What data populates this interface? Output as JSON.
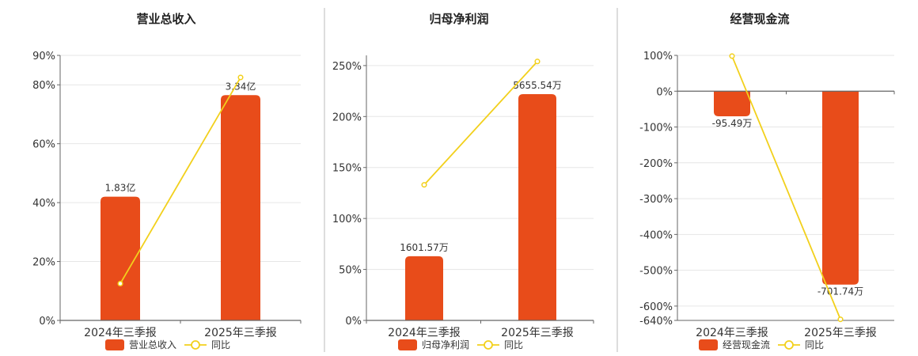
{
  "bar_color": "#E84C1A",
  "line_color": "#F2D01C",
  "axis_color": "#666666",
  "grid_color": "#E6E6E6",
  "divider_color": "#BBBBBB",
  "chart_data": [
    {
      "type": "bar",
      "title": "营业总收入",
      "categories": [
        "2024年三季报",
        "2025年三季报"
      ],
      "series": [
        {
          "name": "营业总收入",
          "kind": "bar",
          "values": [
            42,
            76.5
          ],
          "labels": [
            "1.83亿",
            "3.34亿"
          ]
        },
        {
          "name": "同比",
          "kind": "line",
          "values": [
            12.5,
            82.5
          ]
        }
      ],
      "ylim": [
        0,
        90
      ],
      "yticks": [
        0,
        20,
        40,
        60,
        80,
        90
      ],
      "ytick_labels": [
        "0%",
        "20%",
        "40%",
        "60%",
        "80%",
        "90%"
      ],
      "grid": true,
      "legend": "bottom"
    },
    {
      "type": "bar",
      "title": "归母净利润",
      "categories": [
        "2024年三季报",
        "2025年三季报"
      ],
      "series": [
        {
          "name": "归母净利润",
          "kind": "bar",
          "values": [
            63,
            222
          ],
          "labels": [
            "1601.57万",
            "5655.54万"
          ]
        },
        {
          "name": "同比",
          "kind": "line",
          "values": [
            133,
            254
          ]
        }
      ],
      "ylim": [
        0,
        260
      ],
      "yticks": [
        0,
        50,
        100,
        150,
        200,
        250
      ],
      "ytick_labels": [
        "0%",
        "50%",
        "100%",
        "150%",
        "200%",
        "250%"
      ],
      "grid": true,
      "legend": "bottom"
    },
    {
      "type": "bar",
      "title": "经营现金流",
      "categories": [
        "2024年三季报",
        "2025年三季报"
      ],
      "series": [
        {
          "name": "经营现金流",
          "kind": "bar",
          "values": [
            -70,
            -540
          ],
          "labels": [
            "-95.49万",
            "-701.74万"
          ]
        },
        {
          "name": "同比",
          "kind": "line",
          "values": [
            98,
            -637
          ]
        }
      ],
      "ylim": [
        -640,
        100
      ],
      "yticks": [
        100,
        0,
        -100,
        -200,
        -300,
        -400,
        -500,
        -600,
        -640
      ],
      "ytick_labels": [
        "100%",
        "0%",
        "-100%",
        "-200%",
        "-300%",
        "-400%",
        "-500%",
        "-600%",
        "-640%"
      ],
      "grid": true,
      "legend": "bottom"
    }
  ]
}
